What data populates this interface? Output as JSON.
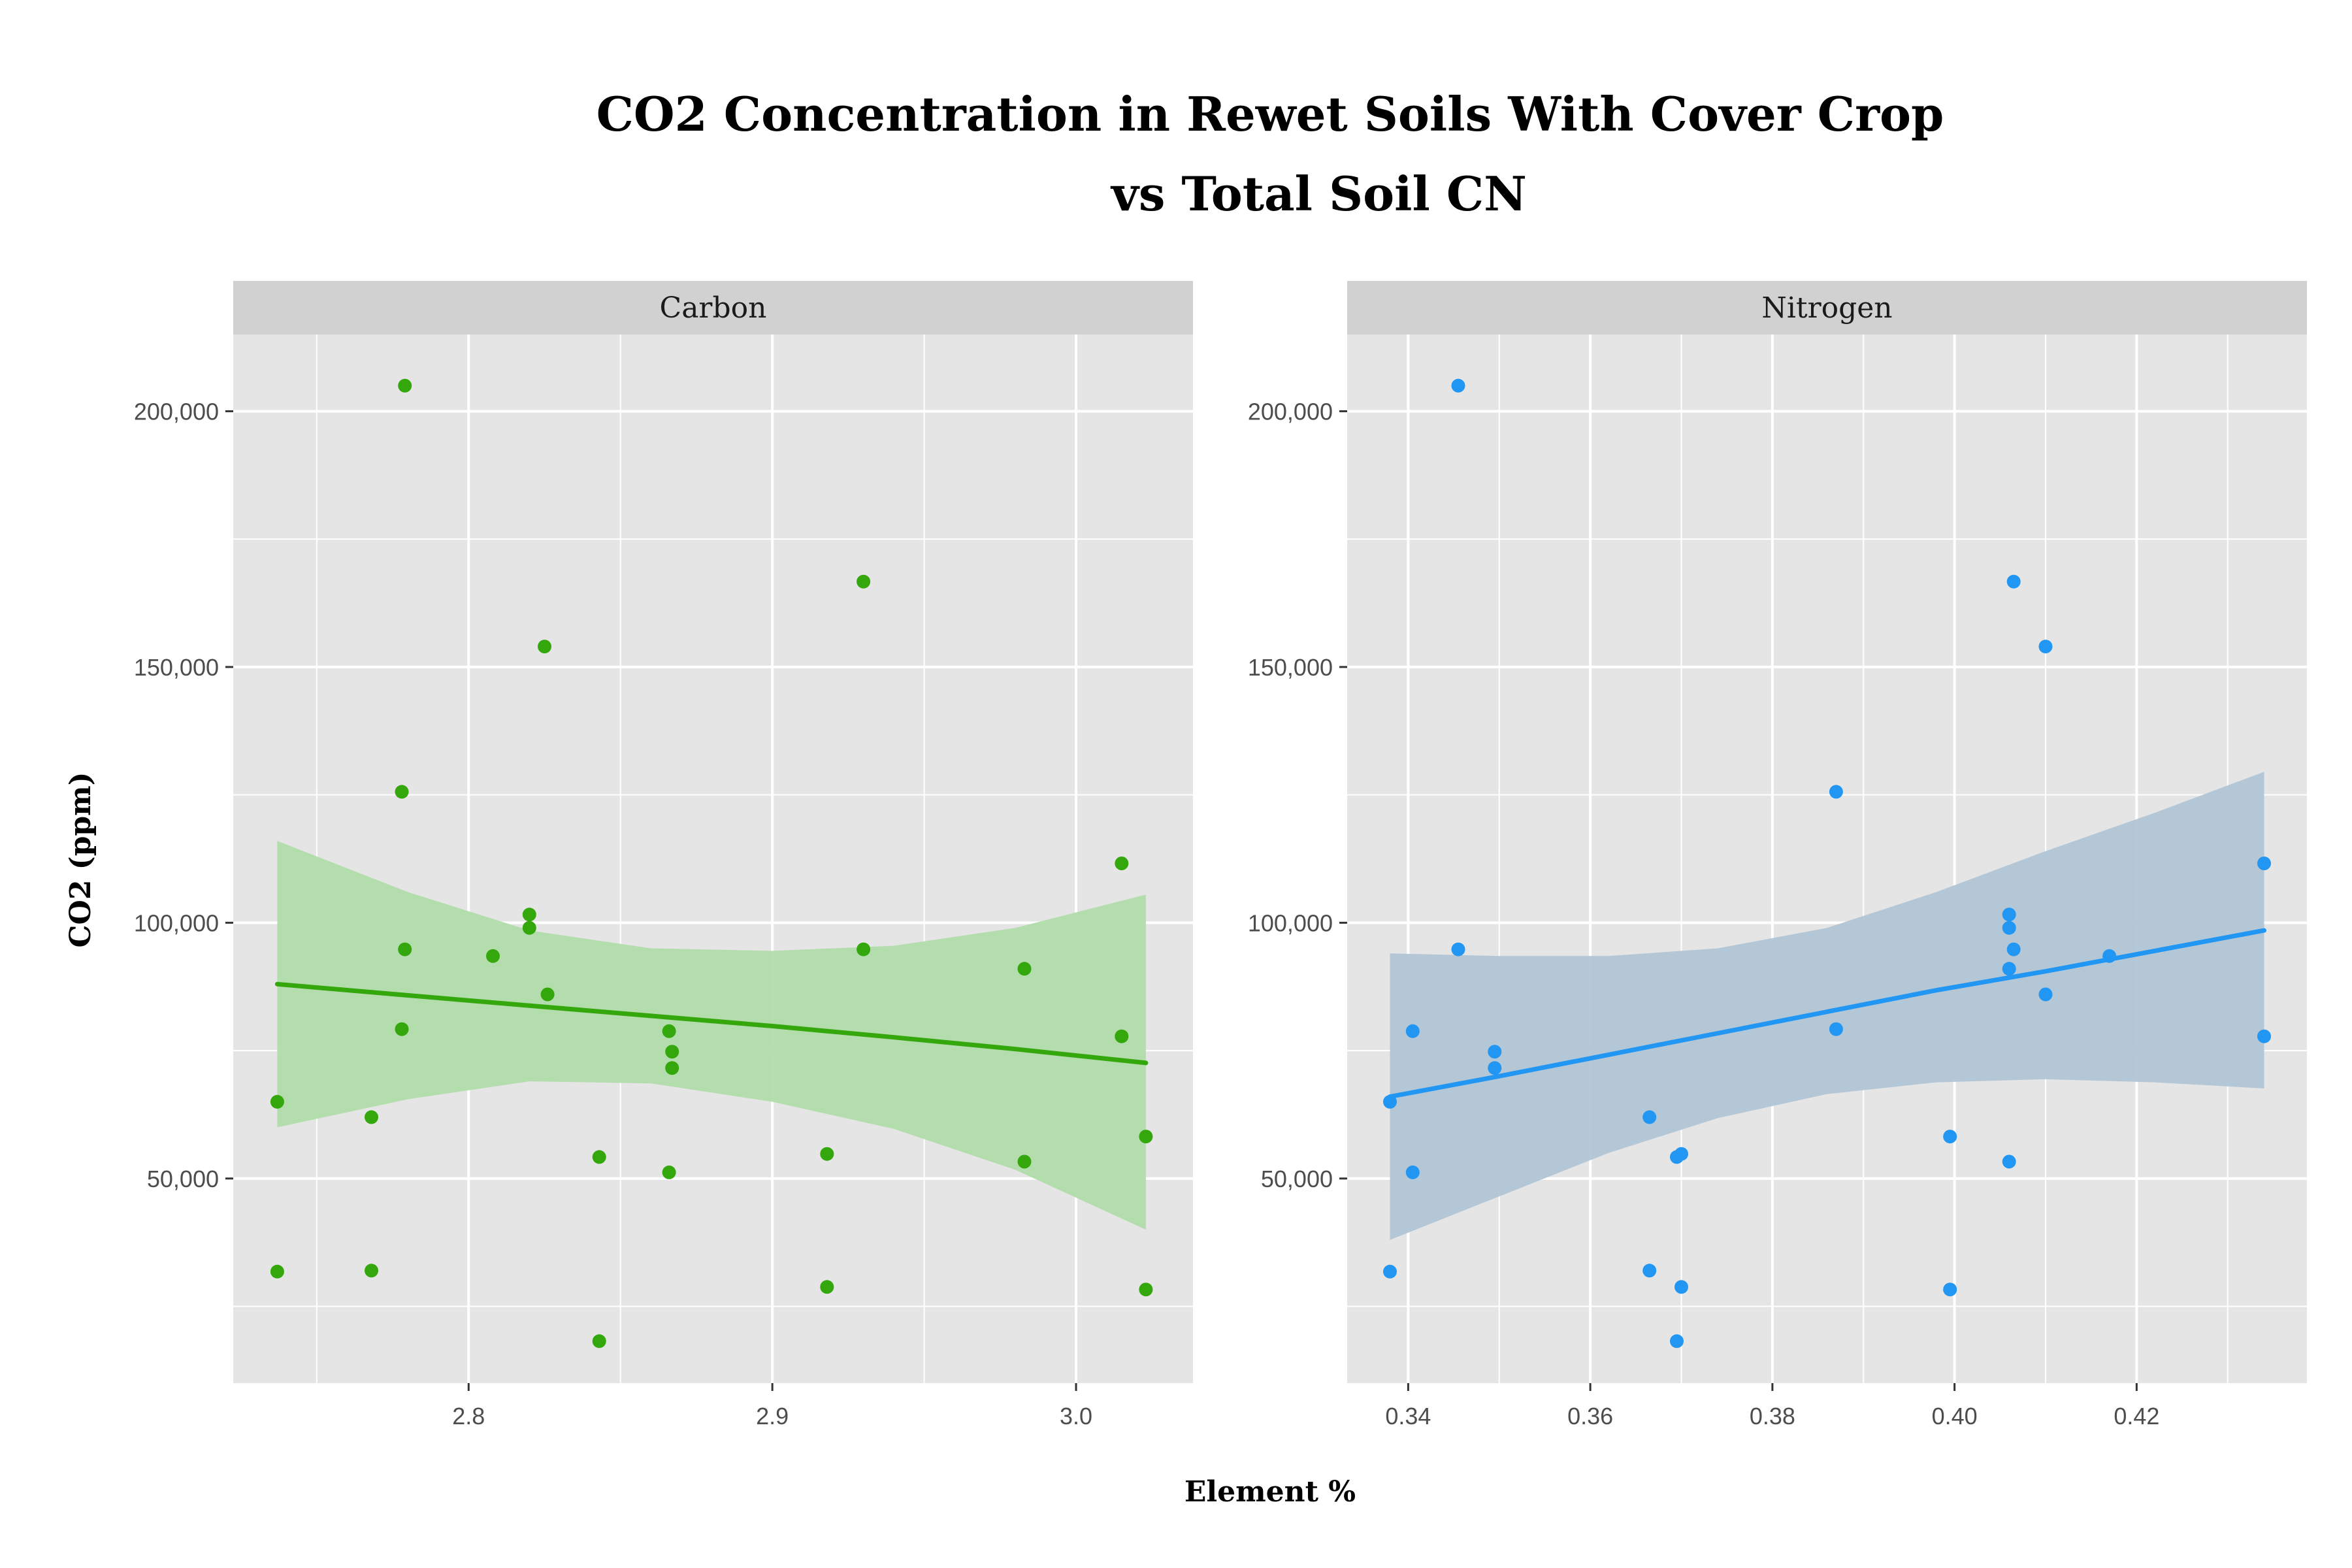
{
  "chart_data": {
    "type": "scatter",
    "title_lines": [
      "CO2 Concentration in Rewet Soils With Cover Crop",
      "vs Total Soil CN"
    ],
    "xlabel": "Element %",
    "ylabel": "CO2 (ppm)",
    "grid": true,
    "colors": {
      "panel_bg": "#e5e5e5",
      "strip_bg": "#d1d1d1",
      "grid": "#ffffff"
    },
    "panels": [
      {
        "id": "carbon",
        "strip": "Carbon",
        "color": "#33a70c",
        "band_color": "#b1dcaa",
        "xlim": [
          2.7225,
          3.0385
        ],
        "xticks": [
          2.8,
          2.9,
          3.0
        ],
        "xtick_labels": [
          "2.8",
          "2.9",
          "3.0"
        ],
        "ylim": [
          10000,
          215000
        ],
        "yticks": [
          50000,
          100000,
          150000,
          200000
        ],
        "ytick_labels": [
          "50,000",
          "100,000",
          "150,000",
          "200,000"
        ],
        "points": [
          {
            "x": 2.737,
            "y": 65000
          },
          {
            "x": 2.737,
            "y": 31800
          },
          {
            "x": 2.768,
            "y": 62000
          },
          {
            "x": 2.768,
            "y": 32000
          },
          {
            "x": 2.779,
            "y": 205000
          },
          {
            "x": 2.778,
            "y": 125600
          },
          {
            "x": 2.779,
            "y": 94800
          },
          {
            "x": 2.778,
            "y": 79200
          },
          {
            "x": 2.808,
            "y": 93500
          },
          {
            "x": 2.82,
            "y": 101600
          },
          {
            "x": 2.82,
            "y": 99000
          },
          {
            "x": 2.825,
            "y": 154000
          },
          {
            "x": 2.826,
            "y": 86000
          },
          {
            "x": 2.843,
            "y": 54200
          },
          {
            "x": 2.843,
            "y": 18200
          },
          {
            "x": 2.866,
            "y": 78800
          },
          {
            "x": 2.867,
            "y": 74800
          },
          {
            "x": 2.867,
            "y": 71600
          },
          {
            "x": 2.866,
            "y": 51200
          },
          {
            "x": 2.918,
            "y": 54800
          },
          {
            "x": 2.918,
            "y": 28800
          },
          {
            "x": 2.93,
            "y": 166700
          },
          {
            "x": 2.93,
            "y": 94800
          },
          {
            "x": 2.983,
            "y": 91000
          },
          {
            "x": 2.983,
            "y": 53300
          },
          {
            "x": 3.015,
            "y": 111600
          },
          {
            "x": 3.015,
            "y": 77800
          },
          {
            "x": 3.023,
            "y": 58200
          },
          {
            "x": 3.023,
            "y": 28300
          }
        ],
        "fit": {
          "x": [
            2.737,
            2.78,
            2.82,
            2.86,
            2.9,
            2.94,
            2.98,
            3.023
          ],
          "y": [
            88000,
            85800,
            83800,
            81800,
            79800,
            77600,
            75300,
            72600
          ],
          "upper": [
            116000,
            106000,
            98500,
            95000,
            94500,
            95500,
            99000,
            105500
          ],
          "lower": [
            60000,
            65500,
            69000,
            68600,
            65000,
            59700,
            51700,
            40000
          ]
        }
      },
      {
        "id": "nitrogen",
        "strip": "Nitrogen",
        "color": "#2196f3",
        "band_color": "#b1c5d6",
        "xlim": [
          0.3333,
          0.4387
        ],
        "xticks": [
          0.34,
          0.36,
          0.38,
          0.4,
          0.42
        ],
        "xtick_labels": [
          "0.34",
          "0.36",
          "0.38",
          "0.40",
          "0.42"
        ],
        "ylim": [
          10000,
          215000
        ],
        "yticks": [
          50000,
          100000,
          150000,
          200000
        ],
        "ytick_labels": [
          "50,000",
          "100,000",
          "150,000",
          "200,000"
        ],
        "points": [
          {
            "x": 0.338,
            "y": 65000
          },
          {
            "x": 0.338,
            "y": 31800
          },
          {
            "x": 0.3405,
            "y": 78800
          },
          {
            "x": 0.3405,
            "y": 51200
          },
          {
            "x": 0.3455,
            "y": 205000
          },
          {
            "x": 0.3455,
            "y": 94800
          },
          {
            "x": 0.3495,
            "y": 74800
          },
          {
            "x": 0.3495,
            "y": 71600
          },
          {
            "x": 0.3665,
            "y": 62000
          },
          {
            "x": 0.3665,
            "y": 32000
          },
          {
            "x": 0.3695,
            "y": 54200
          },
          {
            "x": 0.37,
            "y": 54800
          },
          {
            "x": 0.37,
            "y": 28800
          },
          {
            "x": 0.3695,
            "y": 18200
          },
          {
            "x": 0.387,
            "y": 125600
          },
          {
            "x": 0.387,
            "y": 79200
          },
          {
            "x": 0.3995,
            "y": 58200
          },
          {
            "x": 0.3995,
            "y": 28300
          },
          {
            "x": 0.406,
            "y": 101600
          },
          {
            "x": 0.406,
            "y": 99000
          },
          {
            "x": 0.406,
            "y": 91000
          },
          {
            "x": 0.406,
            "y": 53300
          },
          {
            "x": 0.4065,
            "y": 166700
          },
          {
            "x": 0.4065,
            "y": 94800
          },
          {
            "x": 0.41,
            "y": 154000
          },
          {
            "x": 0.41,
            "y": 86000
          },
          {
            "x": 0.417,
            "y": 93500
          },
          {
            "x": 0.434,
            "y": 111600
          },
          {
            "x": 0.434,
            "y": 77800
          }
        ],
        "fit": {
          "x": [
            0.338,
            0.35,
            0.362,
            0.374,
            0.386,
            0.398,
            0.41,
            0.422,
            0.434
          ],
          "y": [
            66000,
            70000,
            74200,
            78400,
            82600,
            86800,
            90500,
            94500,
            98500
          ],
          "upper": [
            94000,
            93500,
            93500,
            95000,
            99000,
            106000,
            114000,
            121500,
            129500
          ],
          "lower": [
            38000,
            46500,
            55000,
            61800,
            66500,
            68800,
            69400,
            68800,
            67600
          ]
        }
      }
    ]
  }
}
